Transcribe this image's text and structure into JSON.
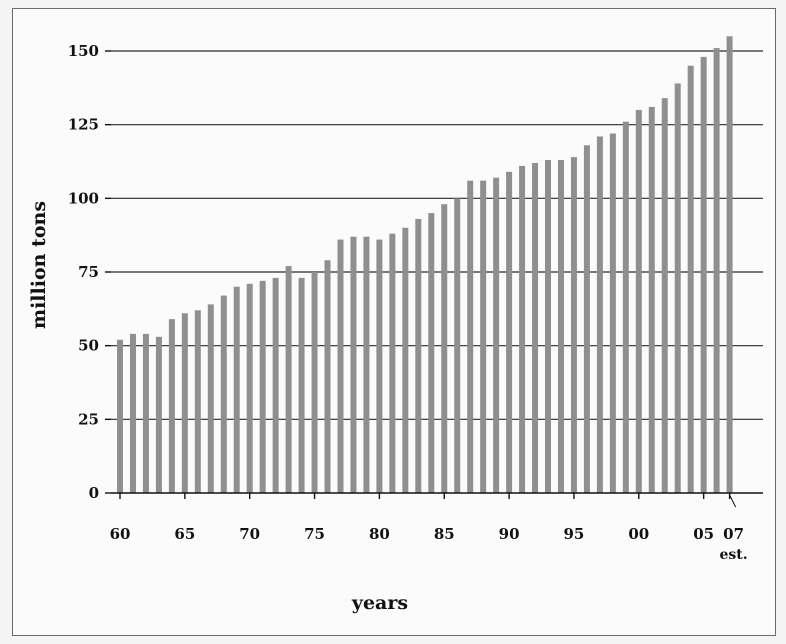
{
  "chart_data": {
    "type": "bar",
    "xlabel": "years",
    "ylabel": "million tons",
    "ylim": [
      0,
      150
    ],
    "yticks": [
      0,
      25,
      50,
      75,
      100,
      125,
      150
    ],
    "grid": "horizontal",
    "bar_color": "#8f8f8f",
    "x_tick_labels": [
      "60",
      "65",
      "70",
      "75",
      "80",
      "85",
      "90",
      "95",
      "00",
      "05",
      "07"
    ],
    "x_tick_note": "est.",
    "categories": [
      "1960",
      "1961",
      "1962",
      "1963",
      "1964",
      "1965",
      "1966",
      "1967",
      "1968",
      "1969",
      "1970",
      "1971",
      "1972",
      "1973",
      "1974",
      "1975",
      "1976",
      "1977",
      "1978",
      "1979",
      "1980",
      "1981",
      "1982",
      "1983",
      "1984",
      "1985",
      "1986",
      "1987",
      "1988",
      "1989",
      "1990",
      "1991",
      "1992",
      "1993",
      "1994",
      "1995",
      "1996",
      "1997",
      "1998",
      "1999",
      "2000",
      "2001",
      "2002",
      "2003",
      "2004",
      "2005",
      "2006",
      "2007"
    ],
    "values": [
      52,
      54,
      54,
      53,
      59,
      61,
      62,
      64,
      67,
      70,
      71,
      72,
      73,
      77,
      73,
      75,
      79,
      86,
      87,
      87,
      86,
      88,
      90,
      93,
      95,
      98,
      100,
      106,
      106,
      107,
      109,
      111,
      112,
      113,
      113,
      114,
      118,
      121,
      122,
      126,
      130,
      131,
      134,
      139,
      145,
      148,
      151,
      155
    ]
  }
}
